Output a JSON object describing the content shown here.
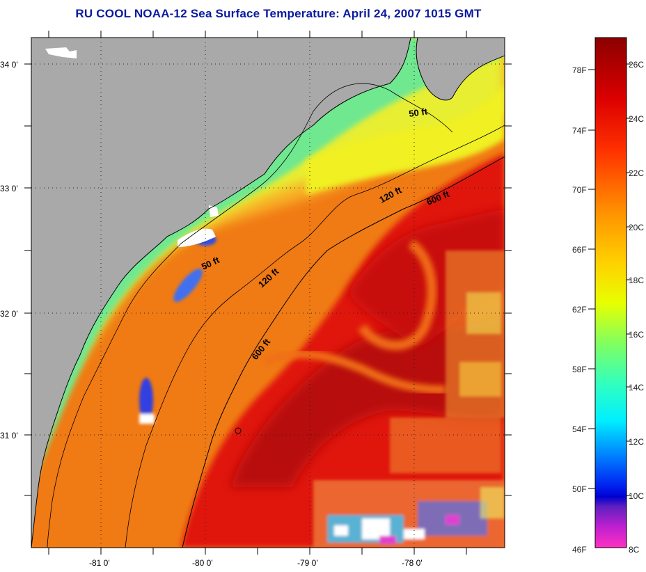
{
  "title": "RU COOL  NOAA-12  Sea Surface Temperature:  April 24, 2007 1015 GMT",
  "lat_ticks": [
    "34 0'",
    "33 0'",
    "32 0'",
    "31 0'"
  ],
  "lon_ticks": [
    "-81 0'",
    "-80 0'",
    "-79 0'",
    "-78 0'"
  ],
  "contours": {
    "c50_north": "50 ft",
    "c50_south": "50 ft",
    "c120_north": "120 ft",
    "c120_south": "120 ft",
    "c600_north": "600 ft",
    "c600_south": "600 ft"
  },
  "colorbar": {
    "fahrenheit": [
      "78F",
      "74F",
      "70F",
      "66F",
      "62F",
      "58F",
      "54F",
      "50F",
      "46F"
    ],
    "celsius": [
      "26C",
      "24C",
      "22C",
      "20C",
      "18C",
      "16C",
      "14C",
      "12C",
      "10C",
      "8C"
    ]
  },
  "colors": {
    "land": "#a9a9a9",
    "title": "#0a1aa0"
  }
}
